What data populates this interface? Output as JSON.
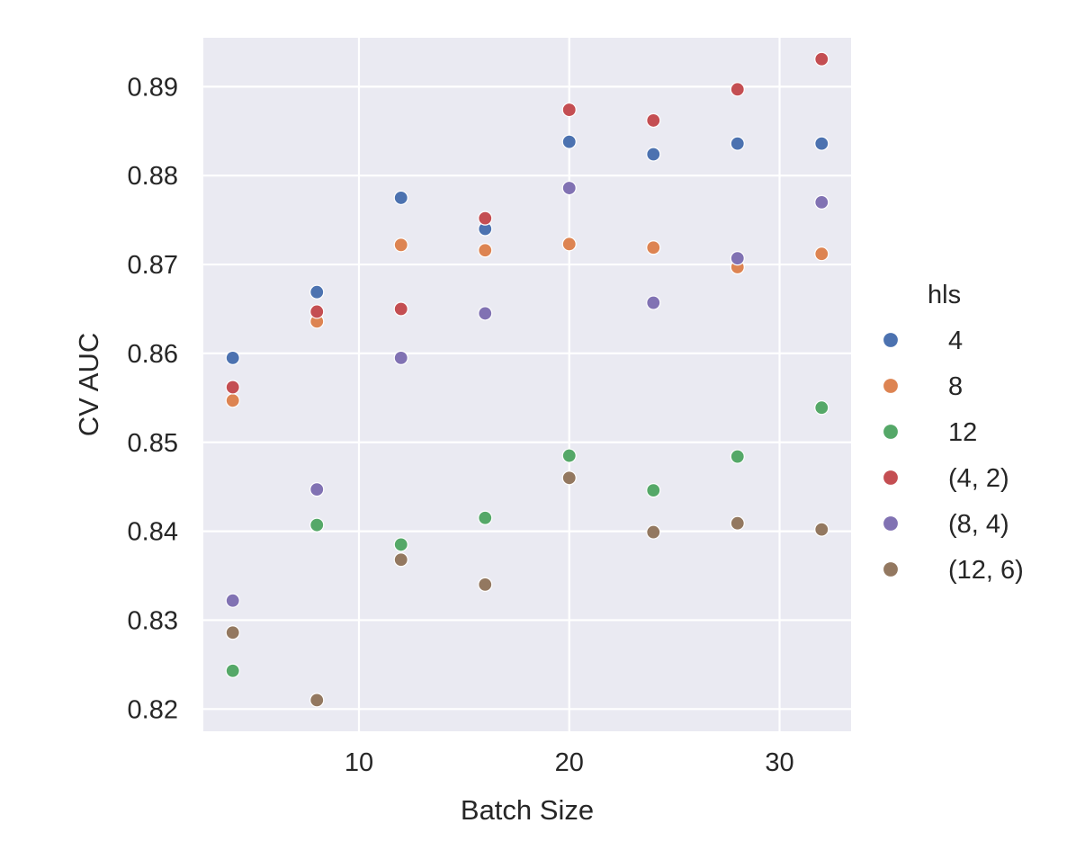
{
  "chart_data": {
    "type": "scatter",
    "title": "",
    "xlabel": "Batch Size",
    "ylabel": "CV AUC",
    "xlim": [
      2.6,
      33.4
    ],
    "ylim": [
      0.8175,
      0.8955
    ],
    "xticks": [
      10,
      20,
      30
    ],
    "yticks": [
      0.82,
      0.83,
      0.84,
      0.85,
      0.86,
      0.87,
      0.88,
      0.89
    ],
    "xtick_labels": [
      "10",
      "20",
      "30"
    ],
    "ytick_labels": [
      "0.82",
      "0.83",
      "0.84",
      "0.85",
      "0.86",
      "0.87",
      "0.88",
      "0.89"
    ],
    "grid": true,
    "background": "#eaeaf2",
    "legend": {
      "title": "hls",
      "placement": "right"
    },
    "series": [
      {
        "name": "4",
        "color": "#4c72b0",
        "x": [
          4,
          8,
          12,
          16,
          20,
          24,
          28,
          32
        ],
        "y": [
          0.8595,
          0.8669,
          0.8775,
          0.874,
          0.8838,
          0.8824,
          0.8836,
          0.8836
        ]
      },
      {
        "name": "8",
        "color": "#dd8452",
        "x": [
          4,
          8,
          12,
          16,
          20,
          24,
          28,
          32
        ],
        "y": [
          0.8547,
          0.8636,
          0.8722,
          0.8716,
          0.8723,
          0.8719,
          0.8697,
          0.8712
        ]
      },
      {
        "name": "12",
        "color": "#55a868",
        "x": [
          4,
          8,
          12,
          16,
          20,
          24,
          28,
          32
        ],
        "y": [
          0.8243,
          0.8407,
          0.8385,
          0.8415,
          0.8485,
          0.8446,
          0.8484,
          0.8539
        ]
      },
      {
        "name": "(4, 2)",
        "color": "#c44e52",
        "x": [
          4,
          8,
          12,
          16,
          20,
          24,
          28,
          32
        ],
        "y": [
          0.8562,
          0.8647,
          0.865,
          0.8752,
          0.8874,
          0.8862,
          0.8897,
          0.8931
        ]
      },
      {
        "name": "(8, 4)",
        "color": "#8172b3",
        "x": [
          4,
          8,
          12,
          16,
          20,
          24,
          28,
          32
        ],
        "y": [
          0.8322,
          0.8447,
          0.8595,
          0.8645,
          0.8786,
          0.8657,
          0.8707,
          0.877
        ]
      },
      {
        "name": "(12, 6)",
        "color": "#937860",
        "x": [
          4,
          8,
          12,
          16,
          20,
          24,
          28,
          32
        ],
        "y": [
          0.8286,
          0.821,
          0.8368,
          0.834,
          0.846,
          0.8399,
          0.8409,
          0.8402
        ]
      }
    ]
  }
}
